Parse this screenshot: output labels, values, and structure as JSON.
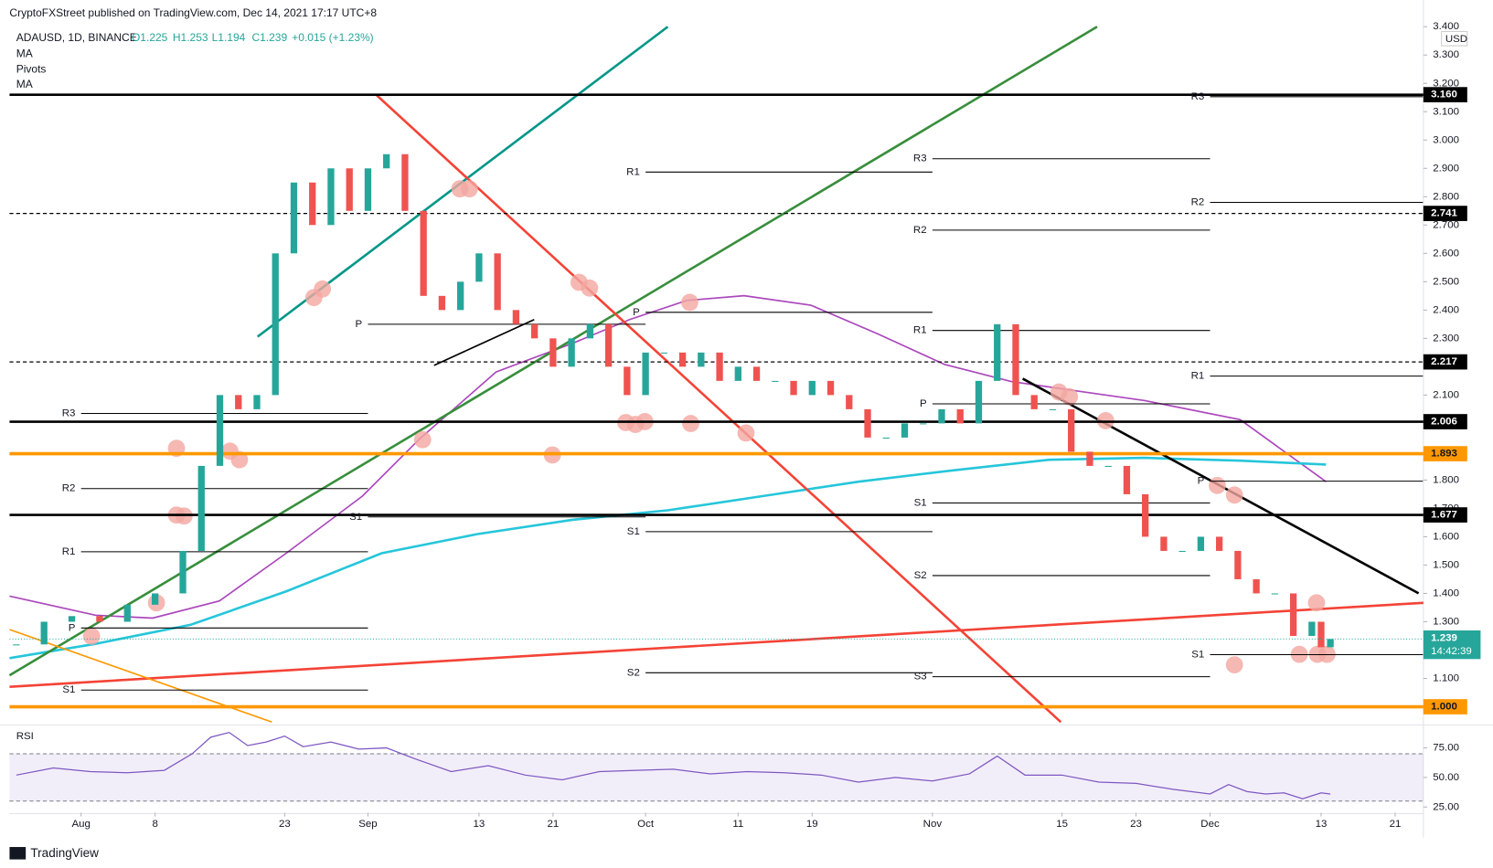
{
  "header": {
    "published": "CryptoFXStreet published on TradingView.com, Dec 14, 2021 17:17 UTC+8",
    "symbol": "ADAUSD, 1D, BINANCE",
    "open": "O1.225",
    "high": "H1.253",
    "low": "L1.194",
    "close": "C1.239",
    "change": "+0.015 (+1.23%)",
    "indicators": [
      "MA",
      "Pivots",
      "MA"
    ],
    "currency": "USD",
    "footer": "TradingView"
  },
  "chart_data": {
    "type": "candlestick",
    "x": [
      -7,
      -4,
      -1,
      2,
      5,
      8,
      11,
      13,
      15,
      17,
      19,
      21,
      23,
      25,
      27,
      29,
      31,
      33,
      35,
      37,
      39,
      41,
      43,
      45,
      47,
      49,
      51,
      53,
      55,
      57,
      59,
      61,
      63,
      65,
      67,
      69,
      71,
      73,
      75,
      77,
      79,
      81,
      83,
      85,
      87,
      89,
      91,
      93,
      95,
      97,
      99,
      101,
      103,
      105,
      107,
      109,
      111,
      113,
      115,
      117,
      119,
      121,
      123,
      125,
      127,
      129,
      131,
      133,
      134,
      135
    ],
    "close": [
      1.22,
      1.3,
      1.32,
      1.3,
      1.36,
      1.4,
      1.55,
      1.85,
      2.1,
      2.05,
      2.1,
      2.6,
      2.85,
      2.7,
      2.9,
      2.75,
      2.9,
      2.95,
      2.75,
      2.45,
      2.4,
      2.5,
      2.6,
      2.4,
      2.35,
      2.3,
      2.2,
      2.3,
      2.35,
      2.2,
      2.1,
      2.25,
      2.25,
      2.2,
      2.25,
      2.15,
      2.2,
      2.15,
      2.15,
      2.1,
      2.15,
      2.1,
      2.05,
      1.95,
      1.95,
      2.0,
      2.0,
      2.05,
      2.0,
      2.15,
      2.35,
      2.1,
      2.05,
      2.05,
      1.9,
      1.85,
      1.85,
      1.75,
      1.6,
      1.55,
      1.55,
      1.6,
      1.55,
      1.45,
      1.4,
      1.4,
      1.25,
      1.3,
      1.21,
      1.239
    ],
    "up_color": "#26a69a",
    "down_color": "#ef5350",
    "xlim": [
      -7.73,
      145.05
    ],
    "xticks": [
      {
        "value": 0,
        "label": "Aug"
      },
      8,
      {
        "value": 22,
        "label": "23"
      },
      {
        "value": 31,
        "label": "Sep"
      },
      {
        "value": 43,
        "label": "13"
      },
      {
        "value": 51,
        "label": "21"
      },
      {
        "value": 61,
        "label": "Oct"
      },
      {
        "value": 71,
        "label": "11"
      },
      {
        "value": 79,
        "label": "19"
      },
      {
        "value": 92,
        "label": "Nov"
      },
      {
        "value": 106,
        "label": "15"
      },
      {
        "value": 114,
        "label": "23"
      },
      {
        "value": 122,
        "label": "Dec"
      },
      {
        "value": 134,
        "label": "13"
      },
      {
        "value": 142,
        "label": "21"
      }
    ],
    "ylim": [
      0.946,
      3.41
    ],
    "yticks": [
      {
        "value": 1.1,
        "label": "1.100"
      },
      {
        "value": 1.3,
        "label": "1.300"
      },
      {
        "value": 1.4,
        "label": "1.400"
      },
      {
        "value": 1.5,
        "label": "1.500"
      },
      {
        "value": 1.6,
        "label": "1.600"
      },
      {
        "value": 1.7,
        "label": "1.700"
      },
      {
        "value": 1.8,
        "label": "1.800"
      },
      {
        "value": 2.1,
        "label": "2.100"
      },
      {
        "value": 2.3,
        "label": "2.300"
      },
      {
        "value": 2.4,
        "label": "2.400"
      },
      {
        "value": 2.5,
        "label": "2.500"
      },
      {
        "value": 2.6,
        "label": "2.600"
      },
      {
        "value": 2.7,
        "label": "2.700"
      },
      {
        "value": 2.8,
        "label": "2.800"
      },
      {
        "value": 2.9,
        "label": "2.900"
      },
      {
        "value": 3.0,
        "label": "3.000"
      },
      {
        "value": 3.1,
        "label": "3.100"
      },
      {
        "value": 3.2,
        "label": "3.200"
      },
      {
        "value": 3.3,
        "label": "3.300"
      },
      {
        "value": 3.4,
        "label": "3.400"
      }
    ],
    "levels": [
      {
        "value": 3.16,
        "label": "3.160",
        "color": "#000000",
        "dashed": false
      },
      {
        "value": 2.741,
        "label": "2.741",
        "color": "#000000",
        "dashed": true
      },
      {
        "value": 2.217,
        "label": "2.217",
        "color": "#000000",
        "dashed": true
      },
      {
        "value": 2.006,
        "label": "2.006",
        "color": "#000000",
        "dashed": false
      },
      {
        "value": 1.893,
        "label": "1.893",
        "color": "#ff9800",
        "dashed": false
      },
      {
        "value": 1.677,
        "label": "1.677",
        "color": "#000000",
        "dashed": false
      },
      {
        "value": 1.0,
        "label": "1.000",
        "color": "#ff9800",
        "dashed": false
      }
    ],
    "last": {
      "value": 1.239,
      "label": "1.239",
      "countdown": "14:42:39",
      "color": "#26a69a"
    },
    "pivots": [
      {
        "name": "R3",
        "value": 2.035,
        "start": 0,
        "end": 31
      },
      {
        "name": "R2",
        "value": 1.77,
        "start": 0,
        "end": 31
      },
      {
        "name": "R1",
        "value": 1.547,
        "start": 0,
        "end": 31
      },
      {
        "name": "P",
        "value": 1.278,
        "start": 0,
        "end": 31
      },
      {
        "name": "S1",
        "value": 1.059,
        "start": 0,
        "end": 31
      },
      {
        "name": "P",
        "value": 2.35,
        "start": 31,
        "end": 61
      },
      {
        "name": "S1",
        "value": 1.67,
        "start": 31,
        "end": 61
      },
      {
        "name": "R1",
        "value": 2.887,
        "start": 61,
        "end": 92
      },
      {
        "name": "P",
        "value": 2.392,
        "start": 61,
        "end": 92
      },
      {
        "name": "S1",
        "value": 1.618,
        "start": 61,
        "end": 92
      },
      {
        "name": "S2",
        "value": 1.12,
        "start": 61,
        "end": 92
      },
      {
        "name": "R3",
        "value": 2.934,
        "start": 92,
        "end": 122
      },
      {
        "name": "R2",
        "value": 2.682,
        "start": 92,
        "end": 122
      },
      {
        "name": "R1",
        "value": 2.328,
        "start": 92,
        "end": 122
      },
      {
        "name": "P",
        "value": 2.069,
        "start": 92,
        "end": 122
      },
      {
        "name": "S1",
        "value": 1.719,
        "start": 92,
        "end": 122
      },
      {
        "name": "S2",
        "value": 1.463,
        "start": 92,
        "end": 122
      },
      {
        "name": "S3",
        "value": 1.106,
        "start": 92,
        "end": 122
      },
      {
        "name": "R3",
        "value": 3.153,
        "start": 122,
        "end": 145
      },
      {
        "name": "R2",
        "value": 2.78,
        "start": 122,
        "end": 145
      },
      {
        "name": "R1",
        "value": 2.167,
        "start": 122,
        "end": 145
      },
      {
        "name": "P",
        "value": 1.796,
        "start": 122,
        "end": 145
      },
      {
        "name": "S1",
        "value": 1.184,
        "start": 122,
        "end": 145
      }
    ],
    "rsi": {
      "label": "RSI",
      "color": "#7e57c2",
      "x": [
        -7,
        -3,
        1,
        5,
        9,
        12,
        14,
        16,
        18,
        20,
        22,
        24,
        27,
        30,
        33,
        36,
        40,
        44,
        48,
        52,
        56,
        60,
        64,
        68,
        72,
        76,
        80,
        84,
        88,
        92,
        96,
        99,
        102,
        106,
        110,
        114,
        118,
        122,
        124,
        126,
        128,
        130,
        132,
        134,
        135
      ],
      "values": [
        52,
        58,
        55,
        54,
        56,
        70,
        84,
        88,
        77,
        80,
        85,
        76,
        80,
        74,
        75,
        66,
        55,
        60,
        52,
        48,
        55,
        56,
        57,
        53,
        55,
        54,
        52,
        46,
        50,
        47,
        53,
        68,
        52,
        52,
        46,
        45,
        40,
        36,
        44,
        38,
        36,
        37,
        32,
        37,
        36
      ],
      "band": [
        30,
        70
      ],
      "ylim": [
        20.2,
        94.4
      ],
      "yticks": [
        {
          "value": 75,
          "label": "75.00"
        },
        {
          "value": 50,
          "label": "50.00"
        },
        {
          "value": 25,
          "label": "25.00"
        }
      ]
    }
  }
}
